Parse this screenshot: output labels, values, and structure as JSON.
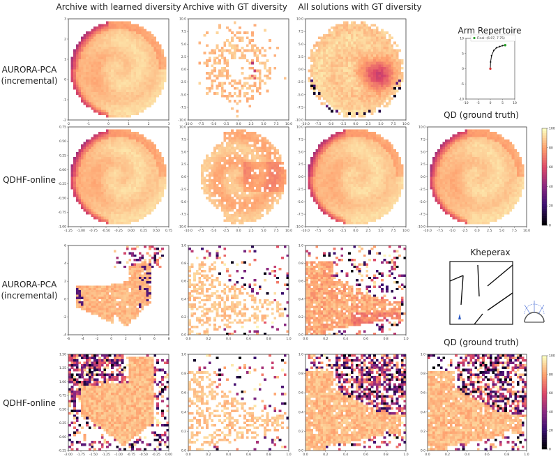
{
  "column_titles": [
    "Archive with learned diversity",
    "Archive with GT diversity",
    "All solutions with GT diversity"
  ],
  "row_labels": [
    [
      "AURORA-PCA",
      "(incremental)"
    ],
    [
      "QDHF-online"
    ],
    [
      "AURORA-PCA",
      "(incremental)"
    ],
    [
      "QDHF-online"
    ]
  ],
  "arm_title": "Arm Repertoire",
  "arm_legend": "Final: (6.07, 7.75)",
  "qd_title": "QD (ground truth)",
  "kheperax_title": "Kheperax",
  "colormap": [
    "#000004",
    "#3b0f70",
    "#8c2981",
    "#de4968",
    "#fe9f6d",
    "#fcfdbf"
  ],
  "chart_data": [
    {
      "type": "heatmap",
      "row": 0,
      "col": 0,
      "pattern": "disk_spiral",
      "density": 0.98,
      "xticks": [
        "-2",
        "-1",
        "0",
        "1",
        "2",
        "3"
      ],
      "yticks": [
        "3",
        "2",
        "1",
        "0",
        "-1",
        "-2"
      ]
    },
    {
      "type": "heatmap",
      "row": 0,
      "col": 1,
      "pattern": "sparse_ring",
      "density": 0.35,
      "xticks": [
        "-10.0",
        "-7.5",
        "-5.0",
        "-2.5",
        "0.0",
        "2.5",
        "5.0",
        "7.5",
        "10.0"
      ],
      "yticks": [
        "10.0",
        "7.5",
        "5.0",
        "2.5",
        "0.0",
        "-2.5",
        "-5.0",
        "-7.5",
        "-10.0"
      ]
    },
    {
      "type": "heatmap",
      "row": 0,
      "col": 2,
      "pattern": "disk_hot",
      "density": 0.95,
      "xticks": [
        "-10.0",
        "-7.5",
        "-5.0",
        "-2.5",
        "0.0",
        "2.5",
        "5.0",
        "7.5",
        "10.0"
      ],
      "yticks": [
        "10.0",
        "7.5",
        "5.0",
        "2.5",
        "0.0",
        "-2.5",
        "-5.0",
        "-7.5",
        "-10.0"
      ]
    },
    {
      "type": "heatmap",
      "row": 1,
      "col": 0,
      "pattern": "disk_spiral",
      "density": 0.99,
      "xticks": [
        "-1.25",
        "-1.00",
        "-0.75",
        "-0.50",
        "-0.25",
        "0.00",
        "0.25",
        "0.50",
        "0.75"
      ],
      "yticks": [
        "0.75",
        "0.50",
        "0.25",
        "0.00",
        "-0.25",
        "-0.50",
        "-0.75",
        "-1.00"
      ]
    },
    {
      "type": "heatmap",
      "row": 1,
      "col": 1,
      "pattern": "disk_holes",
      "density": 0.85,
      "xticks": [
        "-10.0",
        "-7.5",
        "-5.0",
        "-2.5",
        "0.0",
        "2.5",
        "5.0",
        "7.5",
        "10.0"
      ],
      "yticks": [
        "10.0",
        "7.5",
        "5.0",
        "2.5",
        "0.0",
        "-2.5",
        "-5.0",
        "-7.5",
        "-10.0"
      ]
    },
    {
      "type": "heatmap",
      "row": 1,
      "col": 2,
      "pattern": "disk_spiral",
      "density": 0.99,
      "xticks": [
        "-10.0",
        "-7.5",
        "-5.0",
        "-2.5",
        "0.0",
        "2.5",
        "5.0",
        "7.5",
        "10.0"
      ],
      "yticks": [
        "10.0",
        "7.5",
        "5.0",
        "2.5",
        "0.0",
        "-2.5",
        "-5.0",
        "-7.5",
        "-10.0"
      ]
    },
    {
      "type": "heatmap",
      "row": 1,
      "col": 3,
      "pattern": "disk_spiral",
      "density": 1.0,
      "xticks": [
        "-10.0",
        "-7.5",
        "-5.0",
        "-2.5",
        "0.0",
        "2.5",
        "5.0",
        "7.5",
        "10.0"
      ],
      "yticks": [
        "10.0",
        "7.5",
        "5.0",
        "2.5",
        "0.0",
        "-2.5",
        "-5.0",
        "-7.5",
        "-10.0"
      ],
      "colorbar": {
        "ticks": [
          "100",
          "80",
          "60",
          "40",
          "20",
          "0"
        ],
        "range": [
          0,
          100
        ]
      }
    },
    {
      "type": "heatmap",
      "row": 2,
      "col": 0,
      "pattern": "v_shape",
      "density": 0.9,
      "xticks": [
        "-6",
        "-4",
        "-2",
        "0",
        "2",
        "4",
        "6",
        "8"
      ],
      "yticks": [
        "6",
        "4",
        "2",
        "0",
        "-2",
        "-4"
      ]
    },
    {
      "type": "heatmap",
      "row": 2,
      "col": 1,
      "pattern": "maze_sparse",
      "density": 0.45,
      "xticks": [
        "0.0",
        "0.2",
        "0.4",
        "0.6",
        "0.8",
        "1.0"
      ],
      "yticks": [
        "1.0",
        "0.8",
        "0.6",
        "0.4",
        "0.2",
        "0.0"
      ]
    },
    {
      "type": "heatmap",
      "row": 2,
      "col": 2,
      "pattern": "maze_fill",
      "density": 0.7,
      "xticks": [
        "0.0",
        "0.2",
        "0.4",
        "0.6",
        "0.8",
        "1.0"
      ],
      "yticks": [
        "1.0",
        "0.8",
        "0.6",
        "0.4",
        "0.2",
        "0.0"
      ]
    },
    {
      "type": "heatmap",
      "row": 3,
      "col": 0,
      "pattern": "v_noisy",
      "density": 0.85,
      "xticks": [
        "-2.00",
        "-1.75",
        "-1.50",
        "-1.25",
        "-1.00",
        "-0.75",
        "-0.50",
        "-0.25",
        "0.00"
      ],
      "yticks": [
        "1.50",
        "1.25",
        "1.00",
        "0.75",
        "0.50",
        "0.25",
        "0.00",
        "-0.25"
      ]
    },
    {
      "type": "heatmap",
      "row": 3,
      "col": 1,
      "pattern": "maze_sparse",
      "density": 0.6,
      "xticks": [
        "0.0",
        "0.2",
        "0.4",
        "0.6",
        "0.8",
        "1.0"
      ],
      "yticks": [
        "1.0",
        "0.8",
        "0.6",
        "0.4",
        "0.2",
        "0.0"
      ]
    },
    {
      "type": "heatmap",
      "row": 3,
      "col": 2,
      "pattern": "maze_dense",
      "density": 0.8,
      "xticks": [
        "0.0",
        "0.2",
        "0.4",
        "0.6",
        "0.8",
        "1.0"
      ],
      "yticks": [
        "1.0",
        "0.8",
        "0.6",
        "0.4",
        "0.2",
        "0.0"
      ]
    },
    {
      "type": "heatmap",
      "row": 3,
      "col": 3,
      "pattern": "maze_dense",
      "density": 0.85,
      "xticks": [
        "0.0",
        "0.2",
        "0.4",
        "0.6",
        "0.8",
        "1.0"
      ],
      "yticks": [
        "1.0",
        "0.8",
        "0.6",
        "0.4",
        "0.2",
        "0.0"
      ],
      "colorbar": {
        "ticks": [
          "100",
          "80",
          "60",
          "40",
          "20",
          "0"
        ],
        "range": [
          0,
          100
        ]
      }
    },
    {
      "type": "line",
      "name": "arm_repertoire",
      "title": "Arm Repertoire",
      "xlim": [
        -10,
        10
      ],
      "ylim": [
        -10,
        10
      ],
      "xticks": [
        "-10",
        "-5",
        "0",
        "5",
        "10"
      ],
      "yticks": [
        "10",
        "5",
        "0",
        "-5",
        "-10"
      ],
      "x": [
        0,
        0.1,
        0.5,
        1.4,
        2.5,
        3.8,
        5.0,
        6.07
      ],
      "y": [
        0,
        2.2,
        4.3,
        6.0,
        6.9,
        7.3,
        7.6,
        7.75
      ],
      "start": [
        0,
        0
      ],
      "end": [
        6.07,
        7.75
      ]
    }
  ]
}
